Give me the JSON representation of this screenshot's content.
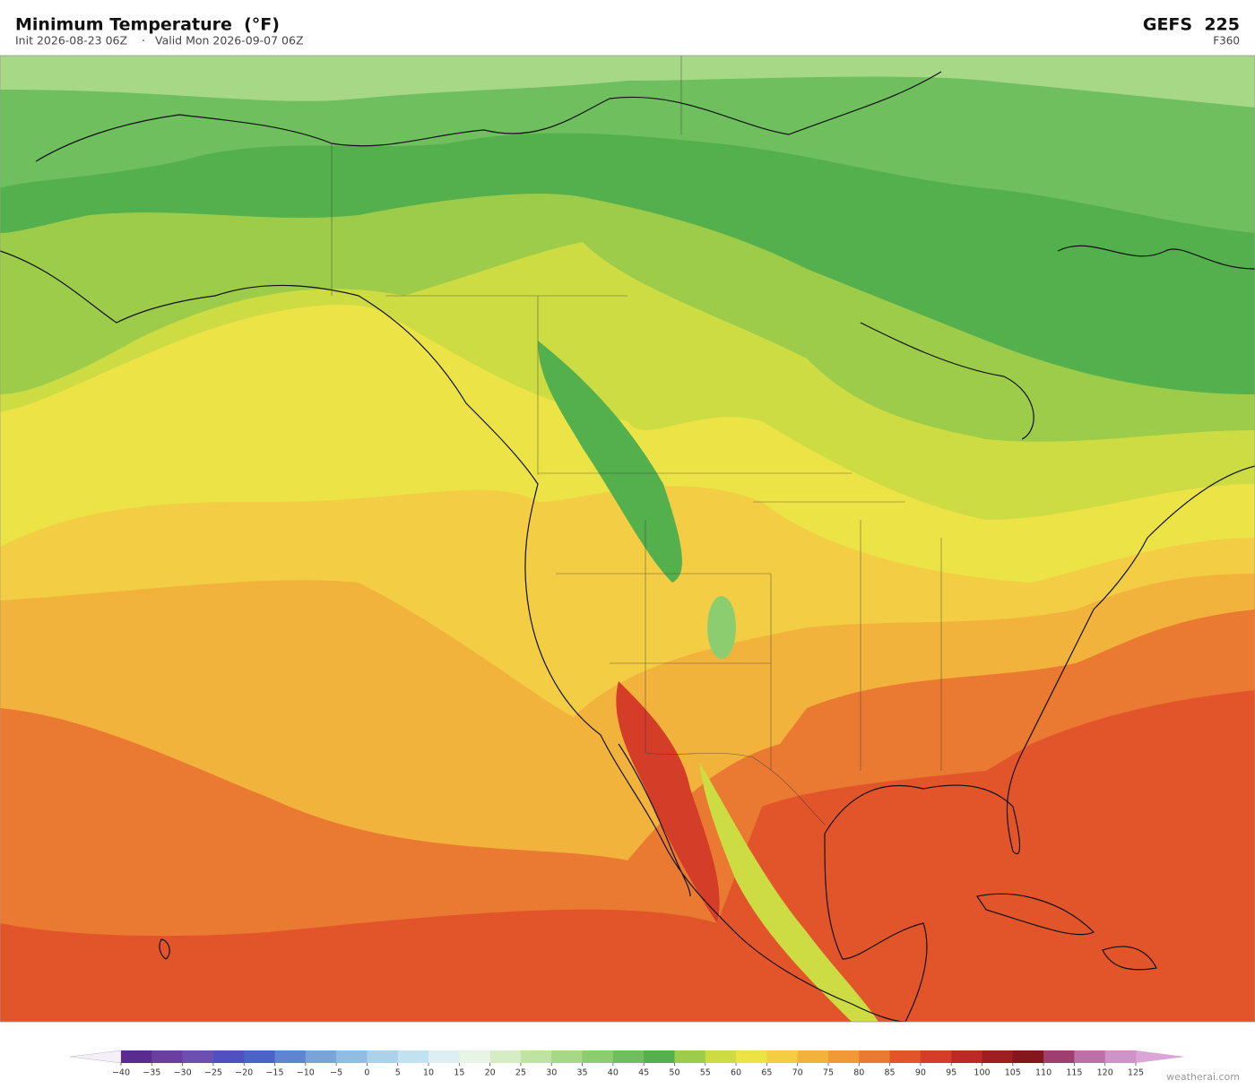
{
  "header": {
    "title": "Minimum Temperature  (°F)",
    "init": "Init 2026-08-23 06Z",
    "separator": "·",
    "valid": "Valid Mon 2026-09-07 06Z",
    "model": "GEFS  225",
    "forecast_hour": "F360"
  },
  "colorbar": {
    "ticks": [
      {
        "value": -40,
        "label": "−40"
      },
      {
        "value": -35,
        "label": "−35"
      },
      {
        "value": -30,
        "label": "−30"
      },
      {
        "value": -25,
        "label": "−25"
      },
      {
        "value": -20,
        "label": "−20"
      },
      {
        "value": -15,
        "label": "−15"
      },
      {
        "value": -10,
        "label": "−10"
      },
      {
        "value": -5,
        "label": "−5"
      },
      0,
      5,
      10,
      15,
      20,
      25,
      30,
      35,
      40,
      45,
      50,
      55,
      60,
      65,
      70,
      75,
      80,
      85,
      90,
      95,
      100,
      105,
      110,
      115,
      120,
      125
    ],
    "colors": [
      "#5b2c8f",
      "#6a3fa0",
      "#6d4fb0",
      "#5050c0",
      "#4a63c9",
      "#5f85d0",
      "#7aa3d8",
      "#92bde2",
      "#aad2ea",
      "#c3e2ef",
      "#dceff3",
      "#e8f5e6",
      "#d5ecc4",
      "#bfe3a0",
      "#a6d886",
      "#8ccd6f",
      "#6fbf5e",
      "#53b04d",
      "#9ccc4a",
      "#cddc43",
      "#ece346",
      "#f3ce44",
      "#f2b33d",
      "#ef9a37",
      "#ea7a31",
      "#e2552b",
      "#d43d28",
      "#bb2a24",
      "#9d1f1f",
      "#84171c",
      "#9e3f6f",
      "#bd6fa7",
      "#cf94c7"
    ],
    "under_color": "#f4eff8",
    "over_color": "#d9a6d6"
  },
  "credit": "weatherai.com"
}
